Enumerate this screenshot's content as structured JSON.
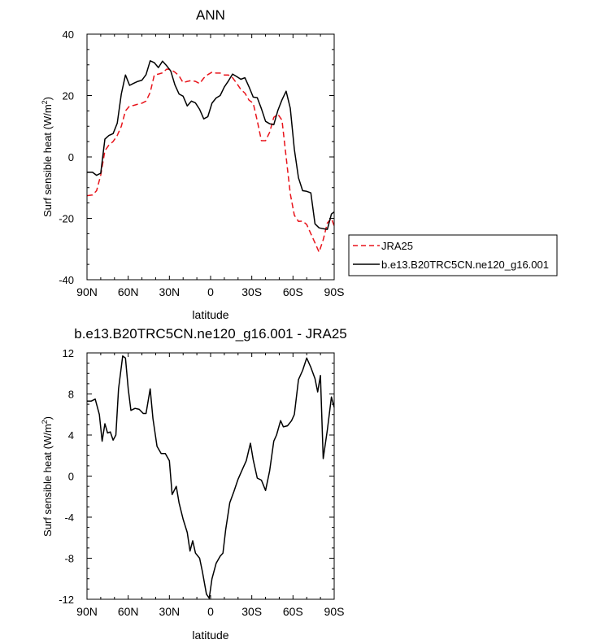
{
  "chart_data": [
    {
      "type": "line",
      "title": "ANN",
      "xlabel": "latitude",
      "ylabel_main": "Surf sensible heat (W/m",
      "ylabel_sup": "2",
      "ylabel_close": ")",
      "xlim": [
        90,
        -90
      ],
      "ylim": [
        -40,
        40
      ],
      "xticks": [
        90,
        60,
        30,
        0,
        -30,
        -60,
        -90
      ],
      "xtick_labels": [
        "90N",
        "60N",
        "30N",
        "0",
        "30S",
        "60S",
        "90S"
      ],
      "yticks": [
        -40,
        -20,
        0,
        20,
        40
      ],
      "ytick_labels": [
        "-40",
        "-20",
        "0",
        "20",
        "40"
      ],
      "grid": false,
      "legend": "right",
      "series": [
        {
          "name": "JRA25",
          "color": "#e8141b",
          "dash": "dashed",
          "x": [
            90,
            86,
            83,
            80,
            77,
            74,
            71,
            68,
            65,
            62,
            59,
            56,
            53,
            50,
            47,
            44,
            41,
            38,
            35,
            32,
            29,
            26,
            23,
            20,
            17,
            14,
            11,
            8,
            5,
            2,
            -1,
            -4,
            -7,
            -10,
            -13,
            -16,
            -19,
            -22,
            -25,
            -28,
            -31,
            -34,
            -37,
            -40,
            -43,
            -46,
            -49,
            -52,
            -55,
            -58,
            -61,
            -64,
            -67,
            -70,
            -73,
            -76,
            -79,
            -82,
            -85,
            -88,
            -90
          ],
          "y": [
            -12.6,
            -12.4,
            -11,
            -5.9,
            2,
            3.9,
            5,
            7,
            10,
            15,
            16.6,
            16.8,
            17.2,
            17.5,
            18.2,
            21,
            26.7,
            27,
            27.4,
            28.6,
            28.5,
            27.6,
            26.4,
            24.2,
            24.6,
            24.9,
            24.6,
            23.9,
            25.7,
            26.8,
            27.6,
            27.3,
            27.3,
            26.7,
            26.7,
            25.8,
            24,
            22,
            20.8,
            18.5,
            17.5,
            11.8,
            5.3,
            5.3,
            8,
            12.9,
            13.9,
            12,
            0,
            -12,
            -19,
            -21,
            -20.9,
            -22,
            -25,
            -28,
            -31,
            -27,
            -21.5,
            -20,
            -22.5
          ]
        },
        {
          "name": "b.e13.B20TRC5CN.ne120_g16.001",
          "color": "#000000",
          "dash": "solid",
          "x": [
            90,
            86,
            83,
            80,
            77,
            74,
            71,
            68,
            65,
            62,
            59,
            56,
            53,
            50,
            47,
            44,
            41,
            38,
            35,
            32,
            29,
            26,
            23,
            20,
            17,
            14,
            11,
            8,
            5,
            2,
            -1,
            -4,
            -7,
            -10,
            -13,
            -16,
            -19,
            -22,
            -25,
            -28,
            -31,
            -34,
            -37,
            -40,
            -43,
            -46,
            -49,
            -52,
            -55,
            -58,
            -61,
            -64,
            -67,
            -70,
            -73,
            -76,
            -79,
            -82,
            -85,
            -88,
            -90
          ],
          "y": [
            -5,
            -5,
            -6,
            -5.3,
            5.8,
            7,
            7.6,
            11,
            20.5,
            26.7,
            23.3,
            24,
            24.6,
            25,
            26.8,
            31.3,
            30.7,
            29.1,
            31.2,
            29.7,
            28,
            23.5,
            20.5,
            19.8,
            16.6,
            18.2,
            17.6,
            15.5,
            12.4,
            13.1,
            17.5,
            19.2,
            20,
            22.8,
            24.8,
            27,
            26.2,
            25.3,
            25.8,
            22.8,
            19.5,
            19.3,
            15.7,
            11.6,
            10.8,
            10.5,
            15.2,
            18.6,
            21.4,
            15.9,
            2.5,
            -6.8,
            -11,
            -11.2,
            -11.7,
            -21.8,
            -23.1,
            -23.4,
            -23.6,
            -18.6,
            -17.9
          ]
        }
      ]
    },
    {
      "type": "line",
      "title": "b.e13.B20TRC5CN.ne120_g16.001 - JRA25",
      "xlabel": "latitude",
      "ylabel_main": "Surf sensible heat (W/m",
      "ylabel_sup": "2",
      "ylabel_close": ")",
      "xlim": [
        90,
        -90
      ],
      "ylim": [
        -12,
        12
      ],
      "xticks": [
        90,
        60,
        30,
        0,
        -30,
        -60,
        -90
      ],
      "xtick_labels": [
        "90N",
        "60N",
        "30N",
        "0",
        "30S",
        "60S",
        "90S"
      ],
      "yticks": [
        -12,
        -8,
        -4,
        0,
        4,
        8,
        12
      ],
      "ytick_labels": [
        "-12",
        "-8",
        "-4",
        "0",
        "4",
        "8",
        "12"
      ],
      "grid": false,
      "series": [
        {
          "color": "#000000",
          "dash": "solid",
          "x": [
            90,
            87,
            84,
            81,
            79,
            77,
            75,
            73,
            71,
            69,
            67,
            64,
            62,
            60,
            58,
            55,
            52,
            49,
            47,
            44,
            42,
            39,
            36,
            33,
            30,
            28,
            25,
            23,
            20,
            17,
            15,
            13,
            11,
            8,
            6,
            3,
            1,
            -1,
            -4,
            -7,
            -9,
            -11,
            -14,
            -17,
            -20,
            -23,
            -26,
            -29,
            -31,
            -34,
            -37,
            -40,
            -43,
            -46,
            -48,
            -51,
            -53,
            -56,
            -59,
            -61,
            -64,
            -67,
            -70,
            -73,
            -76,
            -78,
            -80,
            -82,
            -85,
            -88,
            -90
          ],
          "y": [
            7.3,
            7.3,
            7.5,
            6,
            3.4,
            5.1,
            4.2,
            4.3,
            3.5,
            4,
            8.5,
            11.7,
            11.5,
            8.5,
            6.4,
            6.6,
            6.5,
            6.1,
            6.1,
            8.5,
            5.6,
            2.9,
            2.2,
            2.2,
            1.5,
            -1.8,
            -1,
            -2.6,
            -4.2,
            -5.5,
            -7.3,
            -6.3,
            -7.5,
            -8,
            -9.3,
            -11.5,
            -11.9,
            -10,
            -8.5,
            -7.8,
            -7.5,
            -5.2,
            -2.6,
            -1.5,
            -0.3,
            0.6,
            1.5,
            3.2,
            1.6,
            -0.2,
            -0.4,
            -1.4,
            0.5,
            3.4,
            4,
            5.4,
            4.8,
            4.9,
            5.4,
            6,
            9.4,
            10.3,
            11.5,
            10.6,
            9.5,
            8.2,
            9.8,
            1.7,
            4.5,
            7.7,
            6.7
          ]
        }
      ]
    }
  ],
  "legend": {
    "items": [
      {
        "label": "JRA25",
        "color": "#e8141b",
        "dash": "dashed"
      },
      {
        "label": "b.e13.B20TRC5CN.ne120_g16.001",
        "color": "#000000",
        "dash": "solid"
      }
    ]
  }
}
